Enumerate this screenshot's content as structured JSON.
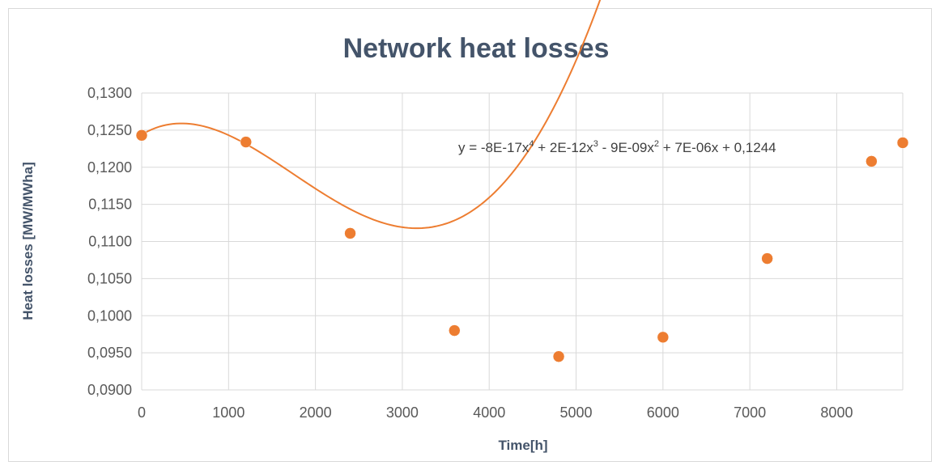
{
  "chart_data": {
    "type": "scatter",
    "title": "Network heat losses",
    "xlabel": "Time[h]",
    "ylabel": "Heat losses [MW/MWha]",
    "xlim": [
      0,
      8760
    ],
    "ylim": [
      0.09,
      0.13
    ],
    "x_ticks": [
      "0",
      "1000",
      "2000",
      "3000",
      "4000",
      "5000",
      "6000",
      "7000",
      "8000"
    ],
    "y_ticks": [
      "0,0900",
      "0,0950",
      "0,1000",
      "0,1050",
      "0,1100",
      "0,1150",
      "0,1200",
      "0,1250",
      "0,1300"
    ],
    "grid": true,
    "color": "#ed7d31",
    "series": [
      {
        "x": [
          0,
          1200,
          2400,
          3600,
          4800,
          6000,
          7200,
          8400,
          8760
        ],
        "y": [
          0.1243,
          0.1234,
          0.1111,
          0.098,
          0.0945,
          0.0971,
          0.1077,
          0.1208,
          0.1233
        ]
      }
    ],
    "trendline": {
      "type": "polynomial",
      "order": 4,
      "coefficients": [
        0.1244,
        7e-06,
        -9e-09,
        2e-12,
        -8e-17
      ],
      "equation": {
        "y": "y = -8E-17x",
        "e1": "4",
        "t1": " + 2E-12x",
        "e2": "3",
        "t2": " - 9E-09x",
        "e3": "2",
        "t3": " + 7E-06x + 0,1244"
      }
    }
  }
}
